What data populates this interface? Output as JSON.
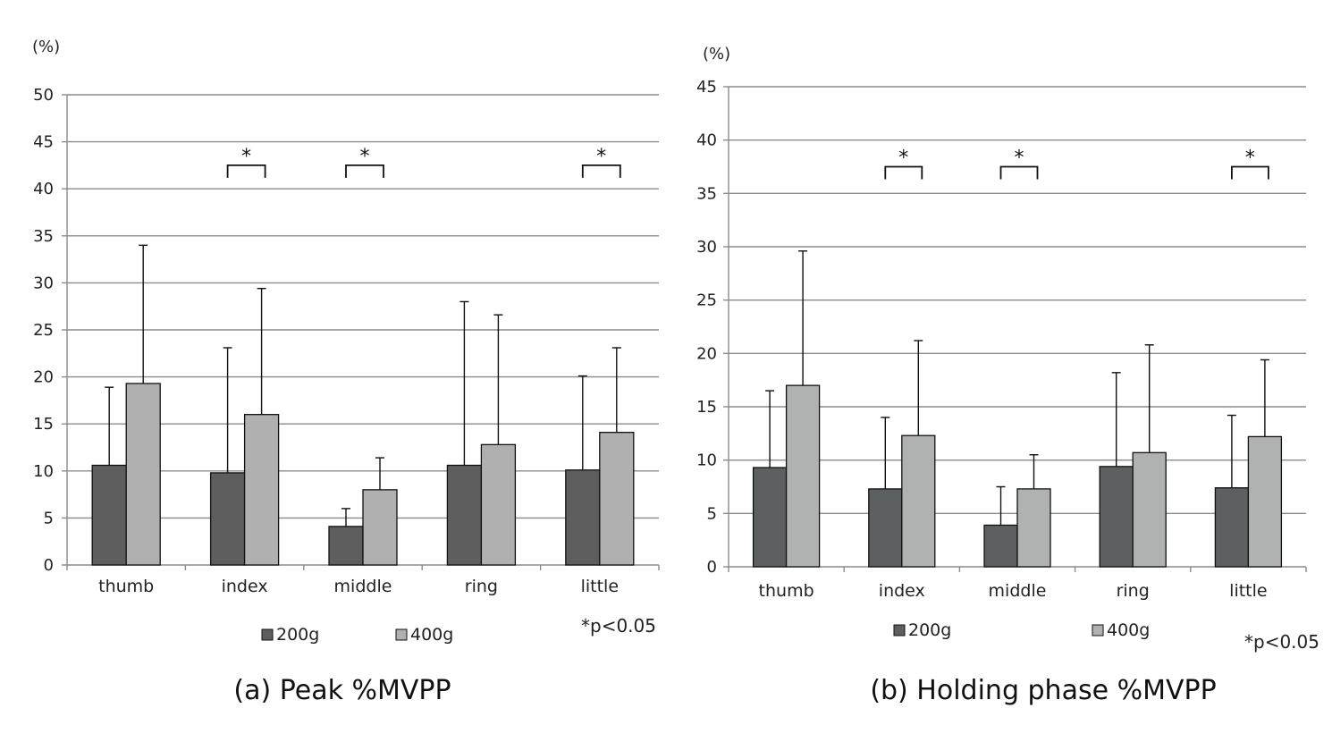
{
  "chart_data": [
    {
      "type": "bar",
      "caption": "(a)  Peak %MVPP",
      "unit_label": "(%)",
      "ylim": [
        0,
        50
      ],
      "yticks": [
        0,
        5,
        10,
        15,
        20,
        25,
        30,
        35,
        40,
        45,
        50
      ],
      "grid": true,
      "categories": [
        "thumb",
        "index",
        "middle",
        "ring",
        "little"
      ],
      "series": [
        {
          "name": "200g",
          "color": "#5e5e5e",
          "values": [
            10.6,
            9.8,
            4.1,
            10.6,
            10.1
          ],
          "error_upper": [
            18.9,
            23.1,
            6.0,
            28.0,
            20.1
          ]
        },
        {
          "name": "400g",
          "color": "#b0b0b0",
          "values": [
            19.3,
            16.0,
            8.0,
            12.8,
            14.1
          ],
          "error_upper": [
            34.0,
            29.4,
            11.4,
            26.6,
            23.1
          ]
        }
      ],
      "significance": [
        {
          "category": "index",
          "label": "*",
          "level": 42.5
        },
        {
          "category": "middle",
          "label": "*",
          "level": 42.5
        },
        {
          "category": "little",
          "label": "*",
          "level": 42.5
        }
      ],
      "note": "*p<0.05",
      "legend_position": "bottom"
    },
    {
      "type": "bar",
      "caption": "(b)  Holding phase %MVPP",
      "unit_label": "(%)",
      "ylim": [
        0,
        45
      ],
      "yticks": [
        0,
        5,
        10,
        15,
        20,
        25,
        30,
        35,
        40,
        45
      ],
      "grid": true,
      "categories": [
        "thumb",
        "index",
        "middle",
        "ring",
        "little"
      ],
      "series": [
        {
          "name": "200g",
          "color": "#5c6060",
          "values": [
            9.3,
            7.3,
            3.9,
            9.4,
            7.4
          ],
          "error_upper": [
            16.5,
            14.0,
            7.5,
            18.2,
            14.2
          ]
        },
        {
          "name": "400g",
          "color": "#b0b2b2",
          "values": [
            17.0,
            12.3,
            7.3,
            10.7,
            12.2
          ],
          "error_upper": [
            29.6,
            21.2,
            10.5,
            20.8,
            19.4
          ]
        }
      ],
      "significance": [
        {
          "category": "index",
          "label": "*",
          "level": 37.5
        },
        {
          "category": "middle",
          "label": "*",
          "level": 37.5
        },
        {
          "category": "little",
          "label": "*",
          "level": 37.5
        }
      ],
      "note": "*p<0.05",
      "legend_position": "bottom"
    }
  ]
}
